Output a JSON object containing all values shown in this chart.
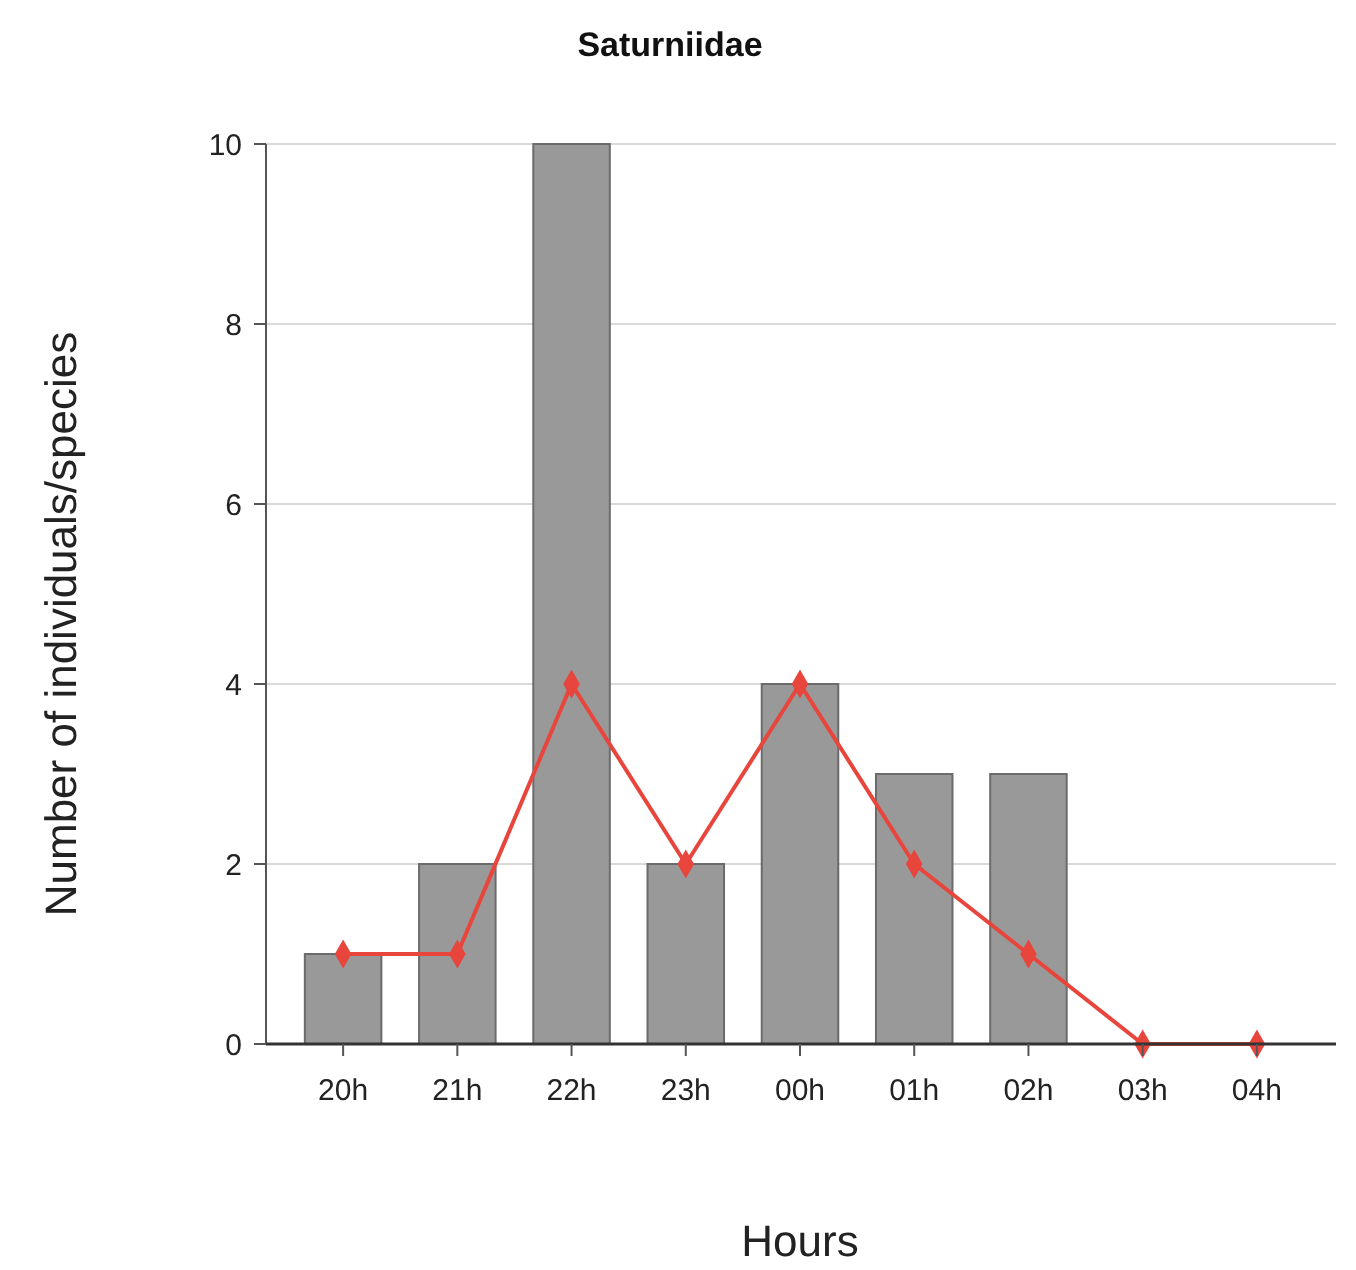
{
  "chart_data": {
    "type": "bar",
    "title": "Saturniidae",
    "xlabel": "Hours",
    "ylabel": "Number of individuals/species",
    "categories": [
      "20h",
      "21h",
      "22h",
      "23h",
      "00h",
      "01h",
      "02h",
      "03h",
      "04h"
    ],
    "series": [
      {
        "color": "#999999",
        "values": [
          1,
          2,
          10,
          2,
          4,
          3,
          3,
          0,
          0
        ]
      },
      {
        "type": "line",
        "color": "#e8453c",
        "marker": "diamond",
        "values": [
          1,
          1,
          4,
          2,
          4,
          2,
          1,
          0,
          0
        ]
      }
    ],
    "ylim": [
      0,
      10
    ],
    "yticks": [
      0,
      2,
      4,
      6,
      8,
      10
    ],
    "grid": "y"
  }
}
